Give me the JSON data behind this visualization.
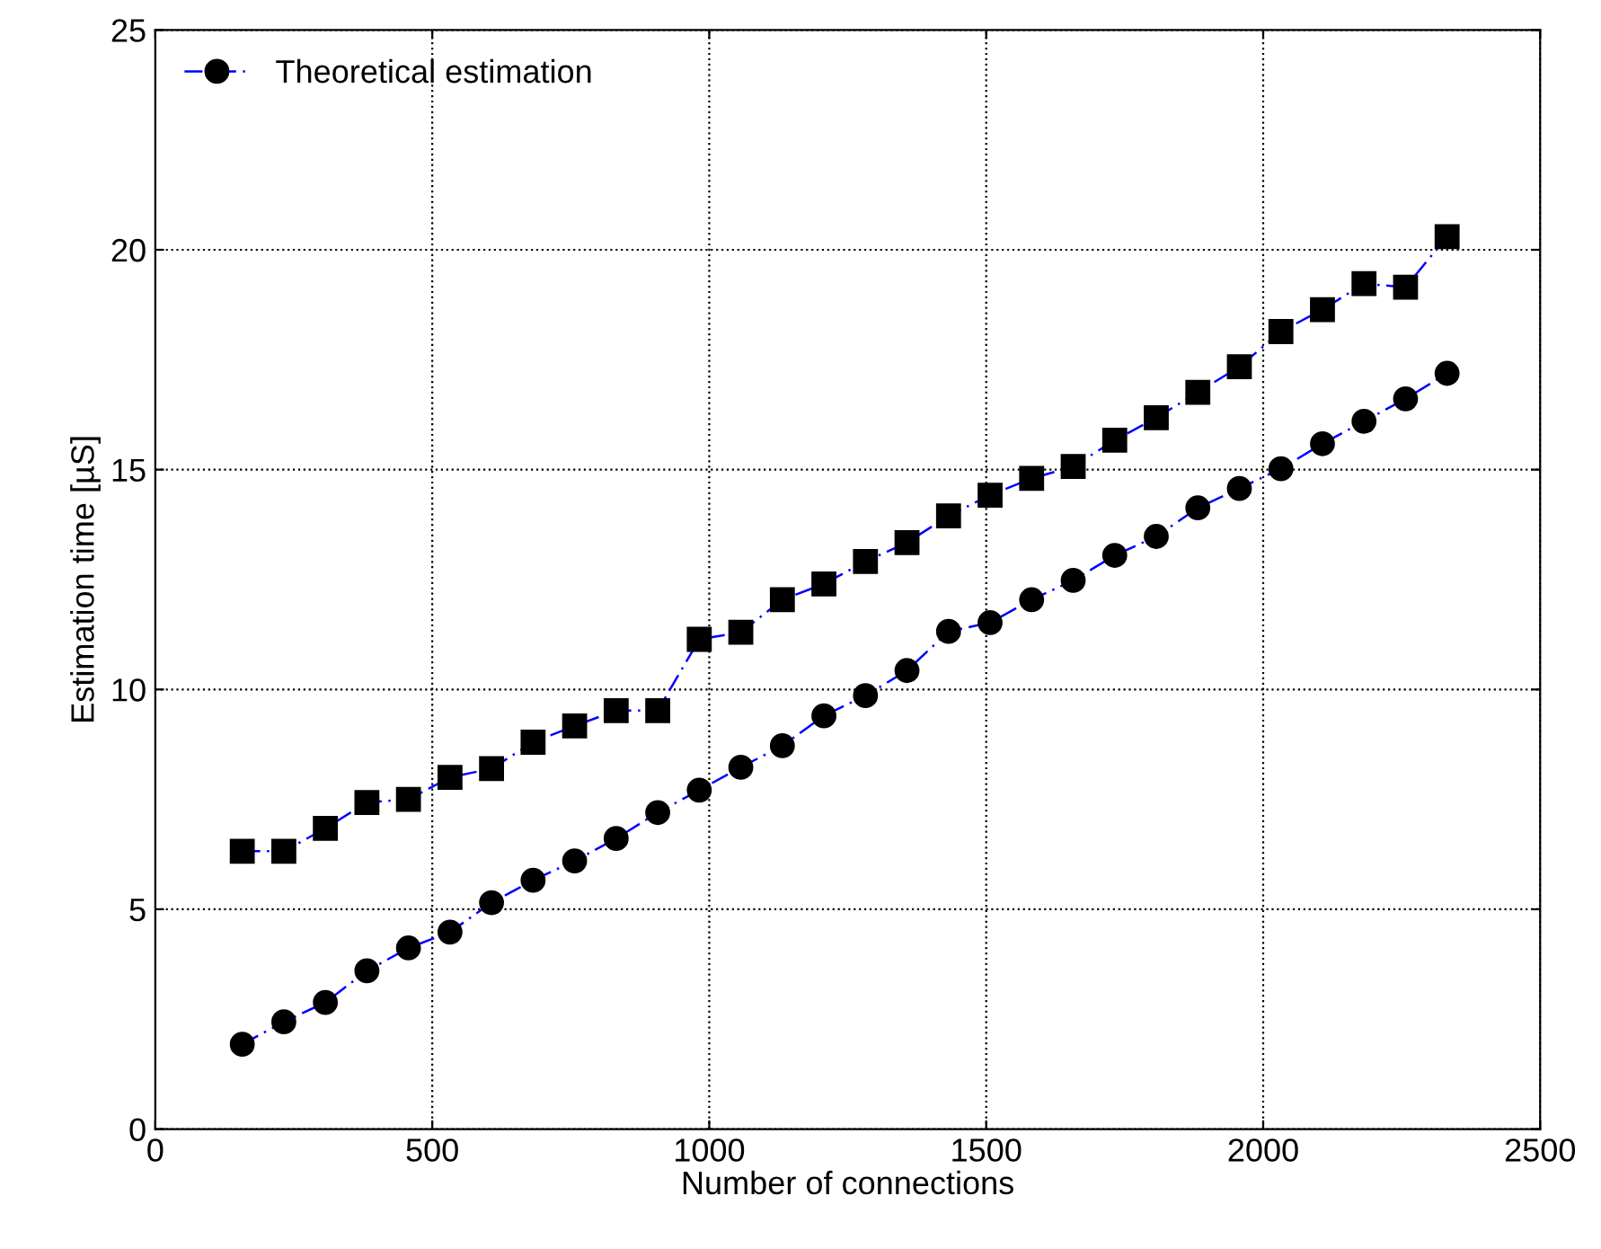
{
  "chart_data": {
    "type": "line",
    "xlabel": "Number of connections",
    "ylabel": "Estimation time [µS]",
    "xlim": [
      0,
      2500
    ],
    "xticks": [
      0,
      500,
      1000,
      1500,
      2000,
      2500
    ],
    "ylim": [
      0,
      25
    ],
    "yticks": [
      0,
      5,
      10,
      15,
      20,
      25
    ],
    "grid": true,
    "legend": "top left",
    "line_style": "dashed",
    "series": [
      {
        "name": "Theoretical estimation",
        "color": "#000000",
        "marker": "circle",
        "x": [
          157,
          232,
          307,
          382,
          457,
          532,
          607,
          682,
          757,
          832,
          907,
          982,
          1057,
          1132,
          1207,
          1282,
          1357,
          1432,
          1507,
          1582,
          1657,
          1732,
          1807,
          1882,
          1957,
          2032,
          2107,
          2182,
          2257,
          2332
        ],
        "values": [
          1.93,
          2.44,
          2.88,
          3.6,
          4.12,
          4.48,
          5.15,
          5.66,
          6.1,
          6.61,
          7.2,
          7.71,
          8.23,
          8.72,
          9.4,
          9.86,
          10.43,
          11.32,
          11.52,
          12.04,
          12.48,
          13.05,
          13.48,
          14.13,
          14.57,
          15.02,
          15.59,
          16.1,
          16.61,
          17.19
        ]
      },
      {
        "color": "#000000",
        "marker": "square",
        "x": [
          157,
          232,
          307,
          382,
          457,
          532,
          607,
          682,
          757,
          832,
          907,
          982,
          1057,
          1132,
          1207,
          1282,
          1357,
          1432,
          1507,
          1582,
          1657,
          1732,
          1807,
          1882,
          1957,
          2032,
          2107,
          2182,
          2257,
          2332
        ],
        "values": [
          6.32,
          6.32,
          6.84,
          7.43,
          7.5,
          8.0,
          8.2,
          8.8,
          9.17,
          9.52,
          9.52,
          11.14,
          11.3,
          12.04,
          12.4,
          12.91,
          13.34,
          13.95,
          14.42,
          14.8,
          15.07,
          15.67,
          16.18,
          16.76,
          17.34,
          18.14,
          18.64,
          19.23,
          19.15,
          20.3
        ]
      }
    ]
  }
}
